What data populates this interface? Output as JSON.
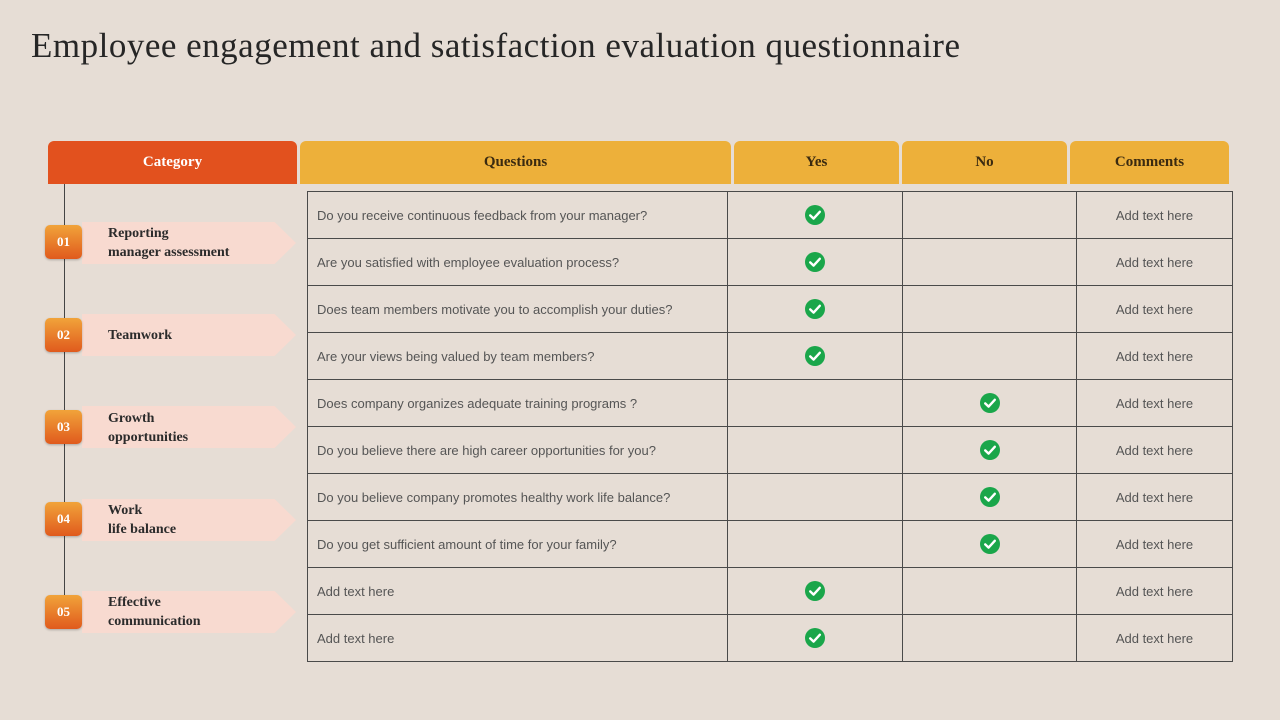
{
  "title": "Employee engagement and satisfaction evaluation questionnaire",
  "headers": {
    "category": "Category",
    "questions": "Questions",
    "yes": "Yes",
    "no": "No",
    "comments": "Comments"
  },
  "categories": [
    {
      "number": "01",
      "label": "Reporting\nmanager assessment"
    },
    {
      "number": "02",
      "label": "Teamwork"
    },
    {
      "number": "03",
      "label": "Growth\nopportunities"
    },
    {
      "number": "04",
      "label": "Work\nlife balance"
    },
    {
      "number": "05",
      "label": "Effective\ncommunication"
    }
  ],
  "colors": {
    "background": "#e6ddd5",
    "category_header": "#e2511e",
    "column_header": "#edb03a",
    "category_arrow": "#f8dad0",
    "check": "#1aa64a"
  },
  "rows": [
    {
      "question": "Do you receive continuous feedback  from your manager?",
      "answer": "yes",
      "comment": "Add text here"
    },
    {
      "question": "Are you satisfied with employee evaluation  process?",
      "answer": "yes",
      "comment": "Add text here"
    },
    {
      "question": "Does team members motivate you to accomplish your duties?",
      "answer": "yes",
      "comment": "Add text here"
    },
    {
      "question": "Are your views  being valued  by team members?",
      "answer": "yes",
      "comment": "Add text here"
    },
    {
      "question": "Does company organizes adequate training programs  ?",
      "answer": "no",
      "comment": "Add text here"
    },
    {
      "question": "Do you believe there are high career opportunities for you?",
      "answer": "no",
      "comment": "Add text here"
    },
    {
      "question": "Do you believe company promotes healthy work life balance?",
      "answer": "no",
      "comment": "Add text here"
    },
    {
      "question": "Do you get sufficient amount of time for your family?",
      "answer": "no",
      "comment": "Add text here"
    },
    {
      "question": "Add text here",
      "answer": "yes",
      "comment": "Add text here"
    },
    {
      "question": "Add text here",
      "answer": "yes",
      "comment": "Add text here"
    }
  ]
}
